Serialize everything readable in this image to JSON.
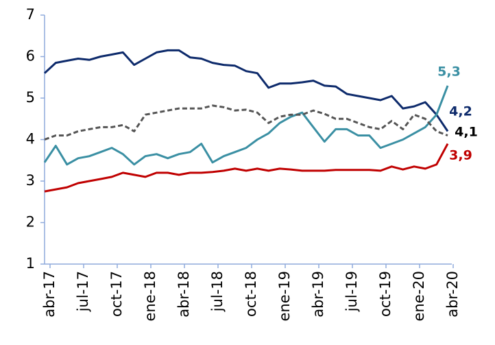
{
  "chart_data": {
    "type": "line",
    "categories": [
      "abr-17",
      null,
      null,
      "jul-17",
      null,
      null,
      "oct-17",
      null,
      null,
      "ene-18",
      null,
      null,
      "abr-18",
      null,
      null,
      "jul-18",
      null,
      null,
      "oct-18",
      null,
      null,
      "ene-19",
      null,
      null,
      "abr-19",
      null,
      null,
      "jul-19",
      null,
      null,
      "oct-19",
      null,
      null,
      "ene-20",
      null,
      null,
      "abr-20"
    ],
    "series": [
      {
        "color": "#0d2a6b",
        "dashed": false,
        "label": "4,2",
        "label_color": "#0d2a6b",
        "values": [
          5.6,
          5.85,
          5.9,
          5.95,
          5.92,
          6.0,
          6.05,
          6.1,
          5.8,
          5.95,
          6.1,
          6.15,
          6.15,
          5.98,
          5.95,
          5.85,
          5.8,
          5.78,
          5.65,
          5.6,
          5.25,
          5.35,
          5.35,
          5.38,
          5.42,
          5.3,
          5.28,
          5.1,
          5.05,
          5.0,
          4.95,
          5.05,
          4.75,
          4.8,
          4.9,
          4.6,
          4.2
        ]
      },
      {
        "color": "#3a8fa3",
        "dashed": false,
        "label": "5,3",
        "label_color": "#3a8fa3",
        "values": [
          3.45,
          3.85,
          3.4,
          3.55,
          3.6,
          3.7,
          3.8,
          3.65,
          3.4,
          3.6,
          3.65,
          3.55,
          3.65,
          3.7,
          3.9,
          3.45,
          3.6,
          3.7,
          3.8,
          4.0,
          4.15,
          4.4,
          4.55,
          4.65,
          4.3,
          3.95,
          4.25,
          4.25,
          4.1,
          4.1,
          3.8,
          3.9,
          4.0,
          4.15,
          4.3,
          4.6,
          5.3
        ]
      },
      {
        "color": "#555555",
        "dashed": true,
        "label": "4,1",
        "label_color": "#000000",
        "values": [
          4.0,
          4.1,
          4.1,
          4.2,
          4.25,
          4.3,
          4.3,
          4.35,
          4.2,
          4.6,
          4.65,
          4.7,
          4.75,
          4.75,
          4.75,
          4.82,
          4.78,
          4.7,
          4.72,
          4.65,
          4.4,
          4.55,
          4.6,
          4.6,
          4.7,
          4.62,
          4.5,
          4.5,
          4.4,
          4.3,
          4.25,
          4.45,
          4.25,
          4.6,
          4.5,
          4.2,
          4.1
        ]
      },
      {
        "color": "#c00000",
        "dashed": false,
        "label": "3,9",
        "label_color": "#c00000",
        "values": [
          2.75,
          2.8,
          2.85,
          2.95,
          3.0,
          3.05,
          3.1,
          3.2,
          3.15,
          3.1,
          3.2,
          3.2,
          3.15,
          3.2,
          3.2,
          3.22,
          3.25,
          3.3,
          3.25,
          3.3,
          3.25,
          3.3,
          3.28,
          3.25,
          3.25,
          3.25,
          3.27,
          3.27,
          3.27,
          3.27,
          3.25,
          3.35,
          3.28,
          3.35,
          3.3,
          3.4,
          3.9
        ]
      }
    ],
    "ylim": [
      1,
      7
    ],
    "yticks": [
      1,
      2,
      3,
      4,
      5,
      6,
      7
    ],
    "grid": false
  }
}
